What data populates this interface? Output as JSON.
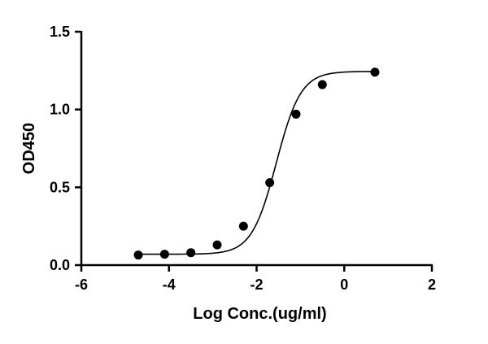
{
  "chart_data": {
    "type": "scatter",
    "title": "",
    "xlabel": "Log Conc.(ug/ml)",
    "ylabel": "OD450",
    "xlim": [
      -6,
      2
    ],
    "ylim": [
      0,
      1.5
    ],
    "x_ticks": [
      -6,
      -4,
      -2,
      0,
      2
    ],
    "x_tick_labels": [
      "-6",
      "-4",
      "-2",
      "0",
      "2"
    ],
    "y_ticks": [
      0,
      0.5,
      1.0,
      1.5
    ],
    "y_tick_labels": [
      "0.0",
      "0.5",
      "1.0",
      "1.5"
    ],
    "grid": false,
    "legend": "none",
    "colors": {
      "points": "#000000",
      "line": "#000000",
      "axes": "#000000"
    },
    "series": [
      {
        "points": [
          {
            "x": -4.7,
            "y": 0.065
          },
          {
            "x": -4.1,
            "y": 0.07
          },
          {
            "x": -3.5,
            "y": 0.08
          },
          {
            "x": -2.9,
            "y": 0.13
          },
          {
            "x": -2.3,
            "y": 0.25
          },
          {
            "x": -1.7,
            "y": 0.53
          },
          {
            "x": -1.1,
            "y": 0.97
          },
          {
            "x": -0.5,
            "y": 1.16
          },
          {
            "x": 0.7,
            "y": 1.24
          }
        ],
        "fit": {
          "model": "4PL",
          "bottom": 0.07,
          "top": 1.245,
          "logEC50": -1.55,
          "hill": 1.55,
          "x_range": [
            -4.7,
            0.7
          ]
        }
      }
    ]
  }
}
